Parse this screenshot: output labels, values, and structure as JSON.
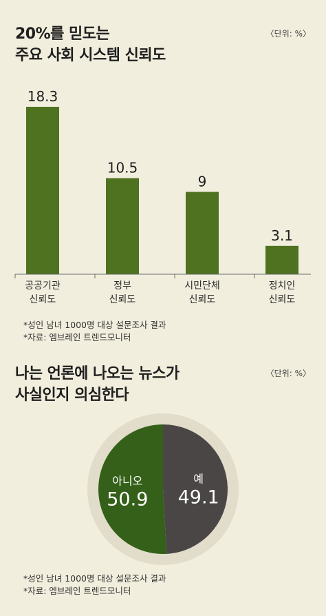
{
  "bar_section": {
    "title_line1": "20%를 믿도는",
    "title_line2": "주요 사회 시스템 신뢰도",
    "unit": "〈단위: %〉",
    "note1": "*성인 남녀 1000명 대상 설문조사 결과",
    "note2": "*자료: 엠브레인 트렌드모니터"
  },
  "pie_section": {
    "title_line1": "나는 언론에 나오는 뉴스가",
    "title_line2": "사실인지 의심한다",
    "unit": "〈단위: %〉",
    "note1": "*성인 남녀 1000명 대상 설문조사 결과",
    "note2": "*자료: 엠브레인 트렌드모니터"
  },
  "colors": {
    "background": "#f1eedd",
    "bar": "#4e7220",
    "pie_no": "#35601a",
    "pie_yes": "#4a4646",
    "pie_ring": "#e2ddca"
  },
  "chart_data": [
    {
      "type": "bar",
      "title": "20%를 믿도는 주요 사회 시스템 신뢰도",
      "unit": "%",
      "categories": [
        [
          "공공기관",
          "신뢰도"
        ],
        [
          "정부",
          "신뢰도"
        ],
        [
          "시민단체",
          "신뢰도"
        ],
        [
          "정치인",
          "신뢰도"
        ]
      ],
      "values": [
        18.3,
        10.5,
        9,
        3.1
      ],
      "value_labels": [
        "18.3",
        "10.5",
        "9",
        "3.1"
      ],
      "ylim": [
        0,
        18.3
      ],
      "grid": false,
      "legend": "none"
    },
    {
      "type": "pie",
      "title": "나는 언론에 나오는 뉴스가 사실인지 의심한다",
      "unit": "%",
      "slices": [
        {
          "label": "아니오",
          "value": 50.9,
          "value_label": "50.9"
        },
        {
          "label": "예",
          "value": 49.1,
          "value_label": "49.1"
        }
      ],
      "legend": "none"
    }
  ]
}
